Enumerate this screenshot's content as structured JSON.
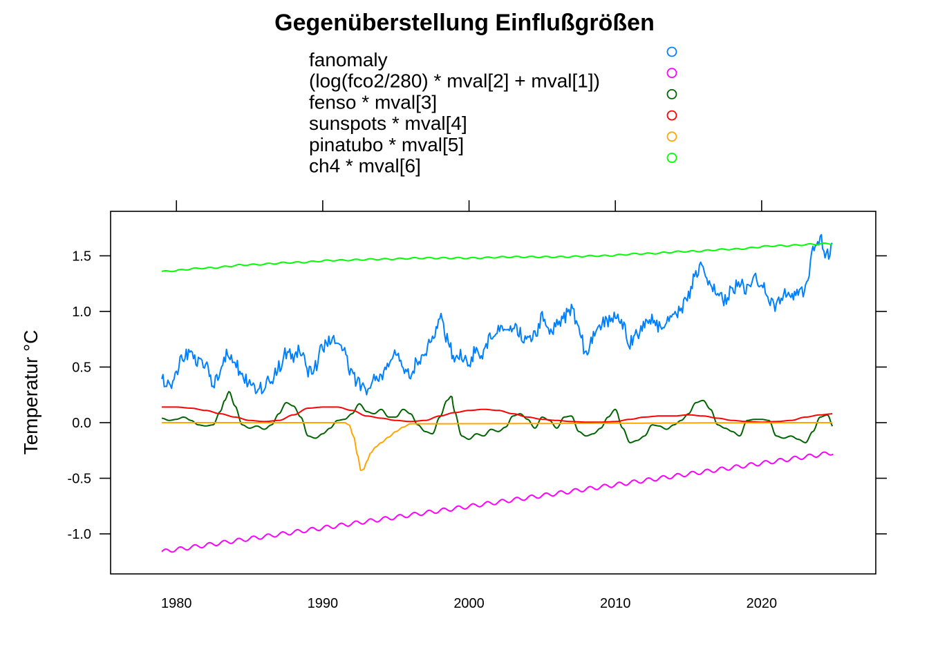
{
  "chart_data": {
    "type": "line",
    "title": "Gegenüberstellung Einflußgrößen",
    "xlabel": "",
    "ylabel": "Temperatur °C",
    "xlim": [
      1975.5,
      2027.8
    ],
    "ylim": [
      -1.36,
      1.9
    ],
    "grid": false,
    "legend_position": "top-center",
    "x_ticks": [
      1980,
      1990,
      2000,
      2010,
      2020
    ],
    "x_tick_labels": [
      "1980",
      "1990",
      "2000",
      "2010",
      "2020"
    ],
    "y_ticks": [
      -1.0,
      -0.5,
      0.0,
      0.5,
      1.0,
      1.5
    ],
    "y_tick_labels": [
      "-1.0",
      "-0.5",
      "0.0",
      "0.5",
      "1.0",
      "1.5"
    ],
    "series": [
      {
        "name": "fanomaly",
        "color": "#0080ff",
        "x": [
          1979.0,
          1979.5,
          1980.0,
          1980.5,
          1981.0,
          1981.5,
          1982.0,
          1982.5,
          1983.0,
          1983.5,
          1984.0,
          1984.5,
          1985.0,
          1985.5,
          1986.0,
          1986.5,
          1987.0,
          1987.5,
          1988.0,
          1988.5,
          1989.0,
          1989.5,
          1990.0,
          1990.5,
          1991.0,
          1991.5,
          1992.0,
          1992.5,
          1993.0,
          1993.5,
          1994.0,
          1994.5,
          1995.0,
          1995.5,
          1996.0,
          1996.5,
          1997.0,
          1997.5,
          1998.0,
          1998.5,
          1999.0,
          1999.5,
          2000.0,
          2000.5,
          2001.0,
          2001.5,
          2002.0,
          2002.5,
          2003.0,
          2003.5,
          2004.0,
          2004.5,
          2005.0,
          2005.5,
          2006.0,
          2006.5,
          2007.0,
          2007.5,
          2008.0,
          2008.5,
          2009.0,
          2009.5,
          2010.0,
          2010.5,
          2011.0,
          2011.5,
          2012.0,
          2012.5,
          2013.0,
          2013.5,
          2014.0,
          2014.5,
          2015.0,
          2015.5,
          2016.0,
          2016.5,
          2017.0,
          2017.5,
          2018.0,
          2018.5,
          2019.0,
          2019.5,
          2020.0,
          2020.5,
          2021.0,
          2021.5,
          2022.0,
          2022.5,
          2023.0,
          2023.5,
          2024.0,
          2024.5,
          2024.9
        ],
        "y": [
          0.38,
          0.33,
          0.48,
          0.6,
          0.62,
          0.55,
          0.5,
          0.35,
          0.45,
          0.64,
          0.55,
          0.4,
          0.35,
          0.3,
          0.32,
          0.4,
          0.5,
          0.62,
          0.6,
          0.65,
          0.45,
          0.5,
          0.68,
          0.75,
          0.7,
          0.62,
          0.42,
          0.35,
          0.3,
          0.38,
          0.42,
          0.52,
          0.6,
          0.48,
          0.45,
          0.55,
          0.6,
          0.78,
          0.95,
          0.75,
          0.58,
          0.6,
          0.55,
          0.65,
          0.62,
          0.8,
          0.85,
          0.78,
          0.88,
          0.8,
          0.72,
          0.78,
          0.95,
          0.8,
          0.88,
          0.95,
          1.02,
          0.85,
          0.62,
          0.78,
          0.88,
          0.92,
          0.95,
          0.88,
          0.72,
          0.8,
          0.88,
          0.95,
          0.85,
          0.92,
          0.95,
          1.02,
          1.15,
          1.32,
          1.42,
          1.22,
          1.15,
          1.1,
          1.2,
          1.25,
          1.2,
          1.3,
          1.25,
          1.1,
          1.05,
          1.15,
          1.12,
          1.15,
          1.2,
          1.55,
          1.65,
          1.5,
          1.63
        ]
      },
      {
        "name": "(log(fco2/280) * mval[2] + mval[1])",
        "color": "#ff00ff",
        "x_start": 1979.0,
        "x_end": 2024.9,
        "y_start": -1.16,
        "y_end": -0.27,
        "seasonal_amplitude": 0.018
      },
      {
        "name": "fenso * mval[3]",
        "color": "#006400",
        "x": [
          1979.0,
          1979.5,
          1980.0,
          1980.5,
          1981.0,
          1981.5,
          1982.0,
          1982.5,
          1983.0,
          1983.3,
          1983.6,
          1984.0,
          1984.5,
          1985.0,
          1985.5,
          1986.0,
          1986.5,
          1987.0,
          1987.5,
          1988.0,
          1988.5,
          1989.0,
          1989.5,
          1990.0,
          1990.5,
          1991.0,
          1991.5,
          1992.0,
          1992.5,
          1993.0,
          1993.5,
          1994.0,
          1994.5,
          1995.0,
          1995.5,
          1996.0,
          1996.5,
          1997.0,
          1997.5,
          1998.0,
          1998.5,
          1998.8,
          1999.0,
          1999.5,
          2000.0,
          2000.5,
          2001.0,
          2001.5,
          2002.0,
          2002.5,
          2003.0,
          2003.5,
          2004.0,
          2004.5,
          2005.0,
          2005.5,
          2006.0,
          2006.5,
          2007.0,
          2007.5,
          2008.0,
          2008.5,
          2009.0,
          2009.5,
          2010.0,
          2010.5,
          2011.0,
          2011.5,
          2012.0,
          2012.5,
          2013.0,
          2013.5,
          2014.0,
          2014.5,
          2015.0,
          2015.5,
          2016.0,
          2016.5,
          2017.0,
          2017.5,
          2018.0,
          2018.5,
          2019.0,
          2019.5,
          2020.0,
          2020.5,
          2021.0,
          2021.5,
          2022.0,
          2022.5,
          2023.0,
          2023.5,
          2024.0,
          2024.5,
          2024.9
        ],
        "y": [
          0.04,
          0.02,
          0.03,
          0.05,
          0.02,
          -0.02,
          -0.03,
          -0.02,
          0.1,
          0.2,
          0.28,
          0.15,
          -0.02,
          -0.05,
          -0.03,
          -0.06,
          -0.02,
          0.08,
          0.18,
          0.15,
          0.05,
          -0.12,
          -0.14,
          -0.1,
          -0.05,
          0.02,
          0.03,
          0.08,
          0.17,
          0.1,
          0.08,
          0.12,
          0.05,
          0.05,
          0.12,
          0.08,
          -0.02,
          -0.08,
          -0.1,
          0.05,
          0.2,
          0.24,
          0.1,
          -0.12,
          -0.15,
          -0.1,
          -0.12,
          -0.06,
          -0.08,
          -0.04,
          0.06,
          0.08,
          0.03,
          -0.05,
          0.05,
          0.02,
          -0.05,
          0.05,
          0.06,
          -0.08,
          -0.12,
          -0.1,
          -0.05,
          0.05,
          0.12,
          -0.05,
          -0.18,
          -0.16,
          -0.12,
          -0.02,
          -0.03,
          -0.06,
          -0.02,
          0.02,
          0.08,
          0.18,
          0.2,
          0.12,
          -0.02,
          -0.05,
          -0.08,
          -0.12,
          0.02,
          0.03,
          0.03,
          0.02,
          -0.12,
          -0.14,
          -0.12,
          -0.15,
          -0.18,
          -0.08,
          0.05,
          0.07,
          -0.04
        ]
      },
      {
        "name": "sunspots * mval[4]",
        "color": "#ff0000",
        "x": [
          1979.0,
          1980.0,
          1981.0,
          1982.0,
          1983.0,
          1984.0,
          1985.0,
          1986.0,
          1987.0,
          1988.0,
          1989.0,
          1990.0,
          1991.0,
          1992.0,
          1993.0,
          1994.0,
          1995.0,
          1996.0,
          1997.0,
          1998.0,
          1999.0,
          2000.0,
          2001.0,
          2002.0,
          2003.0,
          2004.0,
          2005.0,
          2006.0,
          2007.0,
          2008.0,
          2009.0,
          2010.0,
          2011.0,
          2012.0,
          2013.0,
          2014.0,
          2015.0,
          2016.0,
          2017.0,
          2018.0,
          2019.0,
          2020.0,
          2021.0,
          2022.0,
          2023.0,
          2024.0,
          2024.9
        ],
        "y": [
          0.14,
          0.14,
          0.13,
          0.11,
          0.08,
          0.05,
          0.02,
          0.01,
          0.02,
          0.07,
          0.13,
          0.14,
          0.14,
          0.11,
          0.06,
          0.04,
          0.02,
          0.01,
          0.02,
          0.06,
          0.09,
          0.11,
          0.12,
          0.11,
          0.08,
          0.05,
          0.03,
          0.02,
          0.01,
          0.005,
          0.005,
          0.01,
          0.03,
          0.05,
          0.06,
          0.06,
          0.07,
          0.06,
          0.04,
          0.02,
          0.01,
          0.005,
          0.01,
          0.02,
          0.05,
          0.07,
          0.08
        ]
      },
      {
        "name": "pinatubo * mval[5]",
        "color": "#ffa500",
        "x": [
          1979.0,
          1991.5,
          1991.8,
          1992.1,
          1992.4,
          1992.6,
          1992.8,
          1993.0,
          1993.3,
          1993.6,
          1994.0,
          1994.5,
          1995.0,
          1995.5,
          1996.0,
          2024.9
        ],
        "y": [
          0.0,
          0.0,
          -0.02,
          -0.12,
          -0.3,
          -0.43,
          -0.42,
          -0.35,
          -0.27,
          -0.22,
          -0.18,
          -0.13,
          -0.08,
          -0.04,
          -0.01,
          0.0
        ]
      },
      {
        "name": "ch4 * mval[6]",
        "color": "#00ff00",
        "x": [
          1979.0,
          1982.0,
          1985.0,
          1988.0,
          1991.0,
          1994.0,
          1997.0,
          2000.0,
          2003.0,
          2006.0,
          2009.0,
          2012.0,
          2015.0,
          2018.0,
          2021.0,
          2024.9
        ],
        "y": [
          1.36,
          1.39,
          1.42,
          1.44,
          1.46,
          1.47,
          1.48,
          1.48,
          1.49,
          1.49,
          1.5,
          1.52,
          1.54,
          1.56,
          1.59,
          1.61
        ],
        "seasonal_amplitude": 0.006
      }
    ]
  }
}
